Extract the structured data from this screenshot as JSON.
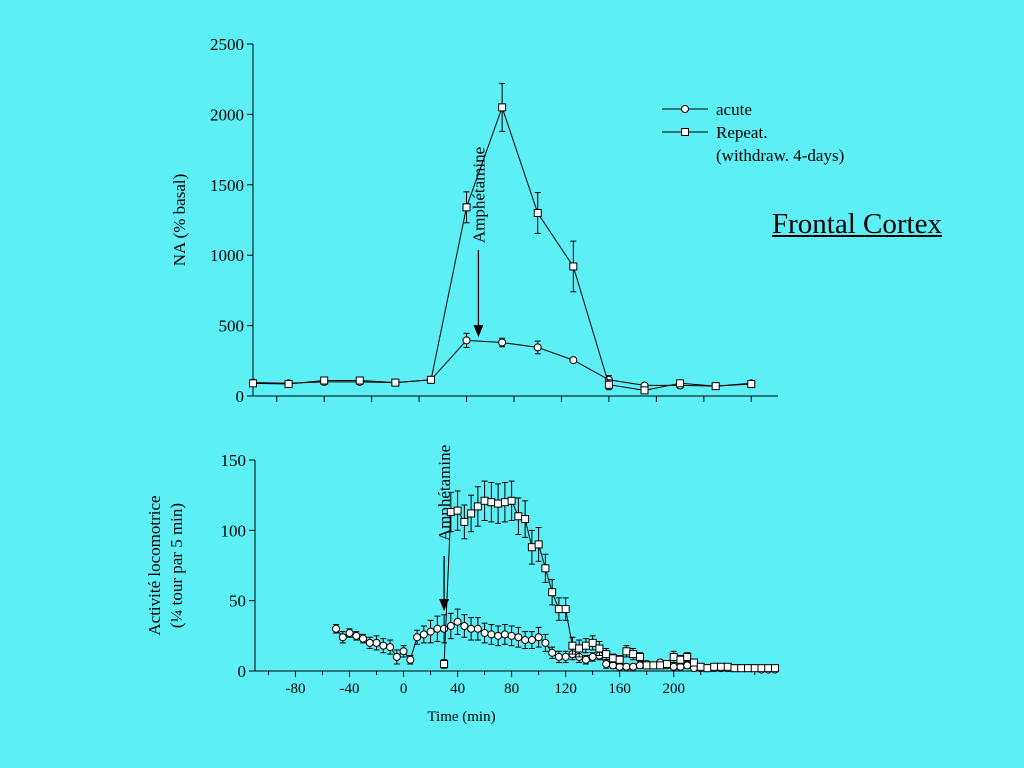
{
  "slide": {
    "title": "Frontal Cortex"
  },
  "colors": {
    "background": "#5cf0f6",
    "ink": "#000000"
  },
  "legend": {
    "entries": [
      {
        "label": "acute",
        "marker": "circle"
      },
      {
        "label": "Repeat.",
        "sublabel": "(withdraw. 4-days)",
        "marker": "square"
      }
    ]
  },
  "chart_data": [
    {
      "type": "line",
      "title": "",
      "xlabel": "",
      "ylabel": "NA (% basal)",
      "ylim": [
        0,
        2500
      ],
      "xlim": [
        -60,
        160
      ],
      "yticks": [
        "0",
        "500",
        "1000",
        "1500",
        "2000",
        "2500"
      ],
      "xticks_unlabeled": [
        -50,
        -30,
        -10,
        10,
        30,
        50,
        70,
        90,
        110,
        130,
        150
      ],
      "annotation": {
        "text": "Amphétamine",
        "x": 35
      },
      "series": [
        {
          "name": "acute",
          "marker": "circle",
          "x": [
            -60,
            -45,
            -30,
            -15,
            0,
            15,
            30,
            45,
            60,
            75,
            90,
            105,
            120,
            135,
            150
          ],
          "y": [
            95,
            90,
            100,
            100,
            95,
            115,
            395,
            380,
            345,
            255,
            115,
            75,
            75,
            70,
            90
          ],
          "err": [
            0,
            0,
            0,
            0,
            0,
            0,
            50,
            30,
            45,
            0,
            30,
            0,
            20,
            0,
            20
          ]
        },
        {
          "name": "Repeat.",
          "marker": "square",
          "x": [
            -60,
            -45,
            -30,
            -15,
            0,
            15,
            30,
            45,
            60,
            75,
            90,
            105,
            120,
            135,
            150
          ],
          "y": [
            90,
            85,
            110,
            110,
            95,
            115,
            1340,
            2050,
            1300,
            920,
            80,
            40,
            90,
            70,
            85
          ],
          "err": [
            0,
            0,
            0,
            0,
            0,
            0,
            110,
            170,
            145,
            180,
            35,
            0,
            20,
            15,
            25
          ]
        }
      ]
    },
    {
      "type": "line",
      "title": "",
      "xlabel": "Time (min)",
      "ylabel": "Activité locomotrice",
      "ylabel2": "(¼ tour par 5 min)",
      "ylim": [
        0,
        150
      ],
      "xlim": [
        -110,
        275
      ],
      "xticks": [
        -80,
        -40,
        0,
        40,
        80,
        120,
        160,
        200
      ],
      "xtick_labels": [
        "-80",
        "-40",
        "0",
        "40",
        "80",
        "120",
        "160",
        "200"
      ],
      "yticks": [
        "0",
        "50",
        "100",
        "150"
      ],
      "annotation": {
        "text": "Amphétamine",
        "x": 30
      },
      "series": [
        {
          "name": "acute",
          "marker": "circle",
          "x": [
            -50,
            -45,
            -40,
            -35,
            -30,
            -25,
            -20,
            -15,
            -10,
            -5,
            0,
            5,
            10,
            15,
            20,
            25,
            30,
            35,
            40,
            45,
            50,
            55,
            60,
            65,
            70,
            75,
            80,
            85,
            90,
            95,
            100,
            105,
            110,
            115,
            120,
            125,
            130,
            135,
            140,
            145,
            150,
            155,
            160,
            165,
            170,
            175,
            180,
            185,
            190,
            195,
            200,
            205,
            210,
            215,
            220,
            225,
            230,
            235,
            240,
            245,
            250,
            255,
            260,
            265,
            270,
            275
          ],
          "y": [
            30,
            24,
            27,
            25,
            23,
            20,
            20,
            18,
            17,
            10,
            14,
            8,
            24,
            26,
            28,
            30,
            30,
            32,
            35,
            32,
            30,
            30,
            27,
            26,
            25,
            26,
            25,
            24,
            22,
            22,
            24,
            20,
            13,
            10,
            10,
            12,
            10,
            8,
            10,
            11,
            5,
            4,
            3,
            3,
            3,
            4,
            5,
            4,
            6,
            4,
            3,
            3,
            4,
            2,
            2,
            2,
            2,
            2,
            2,
            2,
            2,
            2,
            2,
            1,
            1,
            1
          ],
          "err": [
            3,
            4,
            3,
            3,
            3,
            4,
            5,
            5,
            5,
            5,
            4,
            3,
            5,
            6,
            8,
            9,
            10,
            9,
            9,
            8,
            8,
            8,
            7,
            7,
            7,
            7,
            7,
            7,
            6,
            6,
            7,
            6,
            4,
            4,
            4,
            4,
            4,
            3,
            3,
            3,
            3,
            2,
            2,
            2,
            2,
            2,
            2,
            2,
            2,
            2,
            2,
            2,
            2,
            1,
            1,
            1,
            1,
            1,
            1,
            1,
            1,
            1,
            1,
            1,
            1,
            1
          ]
        },
        {
          "name": "Repeat.",
          "marker": "square",
          "x": [
            30,
            35,
            40,
            45,
            50,
            55,
            60,
            65,
            70,
            75,
            80,
            85,
            90,
            95,
            100,
            105,
            110,
            115,
            120,
            125,
            130,
            135,
            140,
            145,
            150,
            155,
            160,
            165,
            170,
            175,
            180,
            185,
            190,
            195,
            200,
            205,
            210,
            215,
            220,
            225,
            230,
            235,
            240,
            245,
            250,
            255,
            260,
            265,
            270,
            275
          ],
          "y": [
            5,
            113,
            114,
            106,
            112,
            117,
            121,
            120,
            119,
            120,
            121,
            110,
            108,
            88,
            90,
            73,
            56,
            44,
            44,
            18,
            16,
            18,
            20,
            16,
            12,
            9,
            8,
            14,
            12,
            10,
            4,
            4,
            4,
            5,
            10,
            8,
            10,
            6,
            3,
            2,
            3,
            3,
            3,
            2,
            2,
            2,
            2,
            2,
            2,
            2
          ],
          "err": [
            3,
            14,
            14,
            12,
            13,
            14,
            14,
            14,
            14,
            14,
            14,
            13,
            13,
            12,
            12,
            10,
            9,
            8,
            8,
            6,
            6,
            5,
            5,
            5,
            4,
            3,
            3,
            4,
            4,
            3,
            2,
            2,
            2,
            2,
            4,
            3,
            3,
            2,
            2,
            1,
            1,
            1,
            1,
            1,
            1,
            1,
            1,
            1,
            1,
            1
          ]
        }
      ]
    }
  ]
}
